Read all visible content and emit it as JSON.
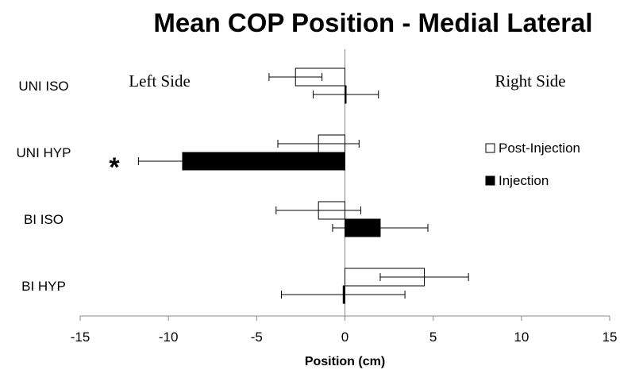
{
  "chart_data": {
    "type": "bar",
    "orientation": "horizontal",
    "title": "Mean COP Position - Medial Lateral",
    "xlabel": "Position (cm)",
    "ylabel": "",
    "xlim": [
      -15,
      15
    ],
    "xticks": [
      -15,
      -10,
      -5,
      0,
      5,
      10,
      15
    ],
    "categories": [
      "UNI ISO",
      "UNI HYP",
      "BI ISO",
      "BI HYP"
    ],
    "series": [
      {
        "name": "Post-Injection",
        "color": "#ffffff",
        "values": [
          -2.8,
          -1.5,
          -1.5,
          4.5
        ],
        "errors": [
          1.5,
          2.3,
          2.4,
          2.5
        ]
      },
      {
        "name": "Injection",
        "color": "#000000",
        "values": [
          0.05,
          -9.2,
          2.0,
          -0.1
        ],
        "errors": [
          1.85,
          2.5,
          2.7,
          3.5
        ]
      }
    ],
    "annotations": [
      {
        "text": "Left Side",
        "x": -10.5,
        "category": "UNI ISO"
      },
      {
        "text": "Right Side",
        "x": 10.5,
        "category": "UNI ISO"
      },
      {
        "text": "*",
        "category": "UNI HYP",
        "note": "significant"
      }
    ],
    "legend_position": "right",
    "grid": false
  }
}
